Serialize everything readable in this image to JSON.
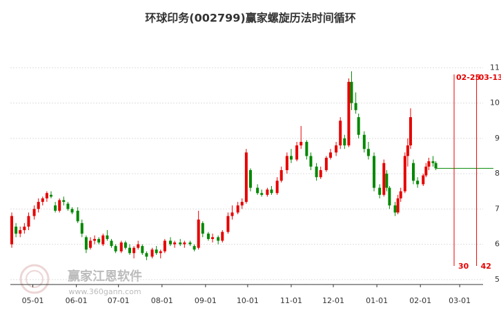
{
  "chart_data": {
    "type": "candlestick",
    "title": "环球印务(002799)赢家螺旋历法时间循环",
    "watermark": {
      "brand": "赢家江恩软件",
      "url": "www.360gann.com"
    },
    "xlim": [
      "04-15",
      "03-25"
    ],
    "xticks": [
      "05-01",
      "06-01",
      "07-01",
      "08-01",
      "09-01",
      "10-01",
      "11-01",
      "12-01",
      "01-01",
      "02-01",
      "03-01"
    ],
    "ylim": [
      4.86,
      11.26
    ],
    "yticks": [
      5,
      6,
      7,
      8,
      9,
      10,
      11
    ],
    "grid": true,
    "up_color": "#e60000",
    "down_color": "#008800",
    "x": [
      "04-16",
      "04-19",
      "04-22",
      "04-25",
      "04-28",
      "05-02",
      "05-05",
      "05-08",
      "05-11",
      "05-14",
      "05-17",
      "05-20",
      "05-23",
      "05-26",
      "05-29",
      "06-02",
      "06-05",
      "06-08",
      "06-11",
      "06-14",
      "06-17",
      "06-20",
      "06-23",
      "06-26",
      "06-29",
      "07-03",
      "07-06",
      "07-09",
      "07-12",
      "07-15",
      "07-18",
      "07-21",
      "07-25",
      "07-28",
      "07-31",
      "08-03",
      "08-07",
      "08-10",
      "08-14",
      "08-17",
      "08-21",
      "08-24",
      "08-27",
      "08-30",
      "09-03",
      "09-06",
      "09-10",
      "09-13",
      "09-17",
      "09-20",
      "09-24",
      "09-27",
      "09-30",
      "10-03",
      "10-08",
      "10-11",
      "10-15",
      "10-18",
      "10-22",
      "10-25",
      "10-29",
      "11-01",
      "11-05",
      "11-08",
      "11-12",
      "11-15",
      "11-19",
      "11-22",
      "11-26",
      "11-29",
      "12-03",
      "12-06",
      "12-09",
      "12-12",
      "12-14",
      "12-17",
      "12-19",
      "12-23",
      "12-26",
      "12-30",
      "01-03",
      "01-06",
      "01-08",
      "01-10",
      "01-14",
      "01-16",
      "01-18",
      "01-21",
      "01-23",
      "01-25",
      "01-27",
      "01-30",
      "02-03",
      "02-05",
      "02-07",
      "02-10",
      "02-12"
    ],
    "open": [
      6.0,
      6.5,
      6.3,
      6.4,
      6.5,
      6.8,
      7.0,
      7.2,
      7.3,
      7.4,
      7.1,
      6.95,
      7.25,
      7.15,
      7.0,
      6.95,
      6.6,
      6.2,
      5.9,
      6.1,
      6.15,
      6.0,
      6.25,
      6.1,
      5.95,
      5.8,
      6.05,
      5.9,
      5.75,
      5.9,
      5.95,
      5.75,
      5.65,
      5.85,
      5.75,
      5.8,
      6.1,
      6.0,
      6.05,
      6.0,
      6.05,
      5.95,
      5.9,
      6.6,
      6.3,
      6.15,
      6.2,
      6.1,
      6.35,
      6.8,
      6.9,
      7.1,
      7.2,
      8.1,
      7.6,
      7.45,
      7.4,
      7.55,
      7.45,
      7.8,
      8.1,
      8.5,
      8.4,
      8.8,
      8.9,
      8.5,
      8.2,
      7.9,
      8.1,
      8.45,
      8.6,
      8.8,
      9.0,
      8.8,
      10.6,
      10.0,
      9.6,
      9.1,
      8.7,
      8.5,
      7.6,
      7.4,
      8.0,
      7.6,
      7.1,
      6.9,
      7.3,
      7.5,
      8.5,
      8.8,
      8.3,
      7.8,
      7.7,
      7.95,
      8.2,
      8.35,
      8.3
    ],
    "high": [
      6.9,
      6.6,
      6.5,
      6.6,
      6.9,
      7.1,
      7.3,
      7.35,
      7.5,
      7.5,
      7.2,
      7.3,
      7.35,
      7.2,
      7.05,
      7.05,
      6.7,
      6.25,
      6.2,
      6.25,
      6.2,
      6.3,
      6.4,
      6.15,
      6.0,
      6.1,
      6.1,
      6.0,
      5.95,
      6.1,
      6.0,
      5.8,
      5.9,
      5.95,
      5.85,
      6.15,
      6.2,
      6.1,
      6.15,
      6.1,
      6.1,
      6.0,
      6.95,
      6.65,
      6.35,
      6.3,
      6.25,
      6.4,
      6.9,
      7.1,
      7.2,
      7.3,
      8.7,
      8.15,
      7.7,
      7.55,
      7.6,
      7.65,
      7.9,
      8.2,
      8.6,
      8.7,
      8.9,
      9.35,
      8.95,
      8.6,
      8.3,
      8.2,
      8.5,
      8.7,
      8.9,
      9.6,
      9.1,
      10.7,
      10.9,
      10.3,
      9.7,
      9.2,
      8.9,
      8.6,
      7.7,
      8.4,
      8.1,
      7.65,
      7.2,
      7.4,
      7.6,
      8.6,
      9.0,
      9.85,
      8.4,
      7.9,
      8.0,
      8.3,
      8.45,
      8.5,
      8.35
    ],
    "low": [
      5.9,
      6.2,
      6.2,
      6.3,
      6.4,
      6.7,
      6.9,
      7.1,
      7.2,
      7.3,
      6.9,
      6.9,
      7.1,
      6.95,
      6.85,
      6.6,
      6.2,
      5.75,
      5.85,
      6.0,
      6.0,
      5.95,
      6.1,
      5.9,
      5.75,
      5.75,
      5.85,
      5.7,
      5.6,
      5.85,
      5.7,
      5.55,
      5.6,
      5.7,
      5.6,
      5.75,
      5.95,
      5.9,
      5.95,
      5.9,
      5.95,
      5.8,
      5.85,
      6.2,
      6.1,
      6.05,
      6.0,
      6.05,
      6.3,
      6.7,
      6.85,
      7.0,
      7.15,
      7.5,
      7.4,
      7.35,
      7.35,
      7.4,
      7.4,
      7.75,
      8.0,
      8.3,
      8.35,
      8.7,
      8.4,
      8.1,
      7.8,
      7.85,
      8.05,
      8.4,
      8.5,
      8.7,
      8.7,
      8.75,
      9.8,
      9.7,
      9.0,
      8.6,
      8.4,
      7.5,
      7.3,
      7.35,
      7.5,
      7.0,
      6.8,
      6.85,
      7.2,
      7.45,
      8.2,
      8.7,
      7.7,
      7.6,
      7.65,
      7.9,
      8.1,
      8.2,
      8.1
    ],
    "close": [
      6.8,
      6.3,
      6.4,
      6.5,
      6.8,
      7.0,
      7.2,
      7.3,
      7.45,
      7.35,
      6.95,
      7.25,
      7.2,
      7.0,
      6.9,
      6.65,
      6.3,
      5.85,
      6.1,
      6.15,
      6.05,
      6.25,
      6.15,
      5.95,
      5.8,
      6.05,
      5.9,
      5.75,
      5.9,
      6.0,
      5.75,
      5.65,
      5.85,
      5.75,
      5.8,
      6.1,
      6.0,
      6.05,
      6.0,
      6.05,
      6.0,
      5.85,
      6.7,
      6.3,
      6.15,
      6.2,
      6.1,
      6.35,
      6.8,
      6.9,
      7.1,
      7.2,
      8.6,
      7.6,
      7.45,
      7.4,
      7.55,
      7.45,
      7.8,
      8.1,
      8.5,
      8.4,
      8.8,
      8.9,
      8.5,
      8.2,
      7.9,
      8.1,
      8.45,
      8.6,
      8.8,
      9.5,
      8.8,
      10.6,
      10.0,
      9.8,
      9.1,
      8.7,
      8.5,
      7.6,
      7.4,
      8.3,
      7.6,
      7.1,
      6.9,
      7.3,
      7.5,
      8.5,
      8.8,
      9.6,
      7.8,
      7.7,
      7.95,
      8.2,
      8.35,
      8.3,
      8.15
    ],
    "cycle_lines": [
      {
        "x": "02-25",
        "count": 30
      },
      {
        "x": "03-13",
        "count": 42
      }
    ],
    "cycle_color": "#e60000"
  }
}
